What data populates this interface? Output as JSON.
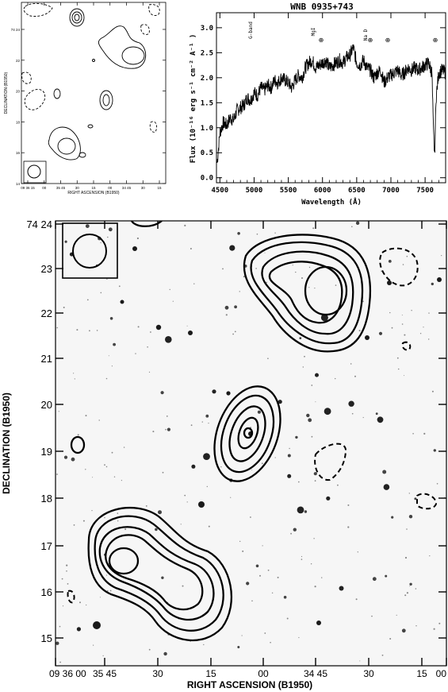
{
  "chart_data": [
    {
      "type": "contour-map",
      "panel": "small-radio-map",
      "xlabel": "RIGHT ASCENSION (B1950)",
      "ylabel": "DECLINATION (B1950)",
      "x_ticks": [
        "09 36 15",
        "00",
        "35 45",
        "30",
        "15",
        "00",
        "34 45",
        "30",
        "15"
      ],
      "y_ticks": [
        "74 24",
        "22",
        "20",
        "18",
        "16",
        "14"
      ]
    },
    {
      "type": "line",
      "panel": "optical-spectrum",
      "title": "WNB 0935+743",
      "xlabel": "Wavelength (Å)",
      "ylabel": "Flux (10⁻¹⁶ erg s⁻¹ cm⁻² A⁻¹ )",
      "xlim": [
        4450,
        7800
      ],
      "ylim": [
        -0.1,
        3.3
      ],
      "x_ticks": [
        "4500",
        "5000",
        "5500",
        "6000",
        "6500",
        "7000",
        "7500"
      ],
      "y_ticks": [
        "0.0",
        "0.5",
        "1.0",
        "1.5",
        "2.0",
        "2.5",
        "3.0"
      ],
      "line_labels": [
        "G-band",
        "MgI",
        "Na D"
      ],
      "telluric_symbol": "⊕",
      "x": [
        4460,
        4500,
        4550,
        4600,
        4650,
        4700,
        4750,
        4800,
        4850,
        4900,
        4950,
        5000,
        5050,
        5100,
        5150,
        5200,
        5250,
        5300,
        5350,
        5400,
        5450,
        5500,
        5550,
        5600,
        5650,
        5700,
        5750,
        5800,
        5850,
        5900,
        5950,
        6000,
        6050,
        6100,
        6150,
        6200,
        6250,
        6300,
        6350,
        6400,
        6450,
        6500,
        6550,
        6600,
        6650,
        6700,
        6750,
        6800,
        6850,
        6900,
        6950,
        7000,
        7050,
        7100,
        7150,
        7200,
        7250,
        7300,
        7350,
        7400,
        7450,
        7500,
        7550,
        7600,
        7620,
        7640,
        7660,
        7700,
        7750,
        7800
      ],
      "y": [
        0.3,
        0.9,
        1.1,
        1.05,
        1.2,
        1.15,
        1.35,
        1.4,
        1.45,
        1.6,
        1.55,
        1.7,
        1.65,
        1.8,
        1.75,
        1.85,
        1.8,
        1.95,
        1.9,
        2.0,
        1.95,
        1.9,
        1.8,
        1.95,
        2.05,
        2.0,
        2.2,
        2.3,
        2.35,
        2.2,
        2.25,
        2.3,
        2.35,
        2.2,
        2.25,
        2.3,
        2.35,
        2.3,
        2.4,
        2.45,
        2.6,
        2.3,
        2.25,
        2.35,
        2.2,
        2.15,
        2.0,
        2.1,
        2.15,
        1.9,
        2.0,
        2.05,
        2.1,
        2.15,
        2.05,
        2.1,
        2.2,
        2.15,
        2.2,
        2.15,
        2.2,
        2.25,
        2.3,
        2.1,
        1.0,
        0.4,
        1.6,
        2.1,
        2.15,
        2.1
      ]
    },
    {
      "type": "contour-map",
      "panel": "large-overlay-map",
      "xlabel": "RIGHT ASCENSION (B1950)",
      "ylabel": "DECLINATION (B1950)",
      "x_ticks": [
        "09 36 00",
        "35 45",
        "30",
        "15",
        "00",
        "34 45",
        "30",
        "15",
        "00"
      ],
      "y_ticks": [
        "74 24",
        "23",
        "22",
        "21",
        "20",
        "19",
        "18",
        "17",
        "16",
        "15"
      ]
    }
  ]
}
